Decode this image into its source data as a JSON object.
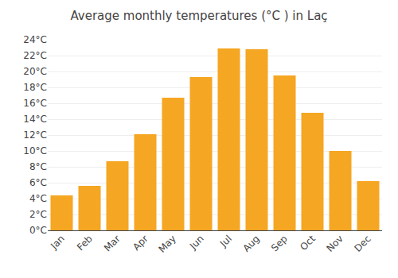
{
  "chart_data": {
    "type": "bar",
    "title": "Average monthly temperatures (°C ) in Laç",
    "categories": [
      "Jan",
      "Feb",
      "Mar",
      "Apr",
      "May",
      "Jun",
      "Jul",
      "Aug",
      "Sep",
      "Oct",
      "Nov",
      "Dec"
    ],
    "values": [
      4.4,
      5.6,
      8.7,
      12.1,
      16.7,
      19.3,
      22.9,
      22.8,
      19.5,
      14.8,
      10.0,
      6.2
    ],
    "color": "#F5A623",
    "ylim": [
      0,
      24
    ],
    "yticks": [
      {
        "value": 0,
        "label": "0°C"
      },
      {
        "value": 2,
        "label": "2°C"
      },
      {
        "value": 4,
        "label": "4°C"
      },
      {
        "value": 6,
        "label": "6°C"
      },
      {
        "value": 8,
        "label": "8°C"
      },
      {
        "value": 10,
        "label": "10°C"
      },
      {
        "value": 12,
        "label": "12°C"
      },
      {
        "value": 14,
        "label": "14°C"
      },
      {
        "value": 16,
        "label": "16°C"
      },
      {
        "value": 18,
        "label": "18°C"
      },
      {
        "value": 20,
        "label": "20°C"
      },
      {
        "value": 22,
        "label": "22°C"
      },
      {
        "value": 24,
        "label": "24°C"
      }
    ],
    "grid": true
  }
}
